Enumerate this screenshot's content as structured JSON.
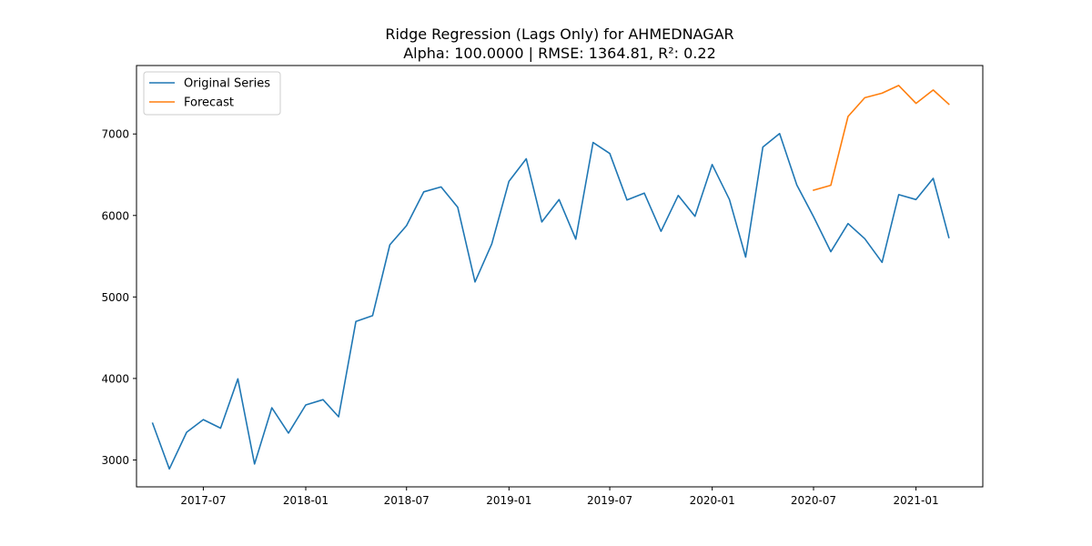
{
  "chart_data": {
    "type": "line",
    "title": "Ridge Regression (Lags Only) for AHMEDNAGAR",
    "subtitle": "Alpha: 100.0000 | RMSE: 1364.81, R²: 0.22",
    "xlabel": "",
    "ylabel": "",
    "x_tick_labels": [
      "2017-07",
      "2018-01",
      "2018-07",
      "2019-01",
      "2019-07",
      "2020-01",
      "2020-07",
      "2021-01"
    ],
    "y_tick_labels": [
      "3000",
      "4000",
      "5000",
      "6000",
      "7000"
    ],
    "ylim": [
      2670,
      7840
    ],
    "xlim": [
      "2017-03-03",
      "2021-05-01"
    ],
    "grid": false,
    "legend_position": "top-left",
    "series": [
      {
        "name": "Original Series",
        "color": "#1f77b4",
        "x": [
          "2017-04-01",
          "2017-05-01",
          "2017-06-01",
          "2017-07-01",
          "2017-08-01",
          "2017-09-01",
          "2017-10-01",
          "2017-11-01",
          "2017-12-01",
          "2018-01-01",
          "2018-02-01",
          "2018-03-01",
          "2018-04-01",
          "2018-05-01",
          "2018-06-01",
          "2018-07-01",
          "2018-08-01",
          "2018-09-01",
          "2018-10-01",
          "2018-11-01",
          "2018-12-01",
          "2019-01-01",
          "2019-02-01",
          "2019-03-01",
          "2019-04-01",
          "2019-05-01",
          "2019-06-01",
          "2019-07-01",
          "2019-08-01",
          "2019-09-01",
          "2019-10-01",
          "2019-11-01",
          "2019-12-01",
          "2020-01-01",
          "2020-02-01",
          "2020-03-01",
          "2020-04-01",
          "2020-05-01",
          "2020-06-01",
          "2020-07-01",
          "2020-08-01",
          "2020-09-01",
          "2020-10-01",
          "2020-11-01",
          "2020-12-01",
          "2021-01-01",
          "2021-02-01",
          "2021-03-01"
        ],
        "values": [
          3450,
          2890,
          3340,
          3495,
          3390,
          3995,
          2950,
          3640,
          3330,
          3675,
          3740,
          3530,
          4700,
          4770,
          5640,
          5875,
          6290,
          6350,
          6100,
          5185,
          5650,
          6420,
          6695,
          5920,
          6195,
          5710,
          6895,
          6760,
          6190,
          6275,
          5805,
          6245,
          5990,
          6625,
          6195,
          5490,
          6840,
          7005,
          6375,
          5985,
          5555,
          5900,
          5715,
          5425,
          6255,
          6195,
          6455,
          5730
        ]
      },
      {
        "name": "Forecast",
        "color": "#ff7f0e",
        "x": [
          "2020-07-01",
          "2020-08-01",
          "2020-09-01",
          "2020-10-01",
          "2020-11-01",
          "2020-12-01",
          "2021-01-01",
          "2021-02-01",
          "2021-03-01"
        ],
        "values": [
          6310,
          6370,
          7215,
          7445,
          7500,
          7595,
          7375,
          7540,
          7365
        ]
      }
    ]
  }
}
